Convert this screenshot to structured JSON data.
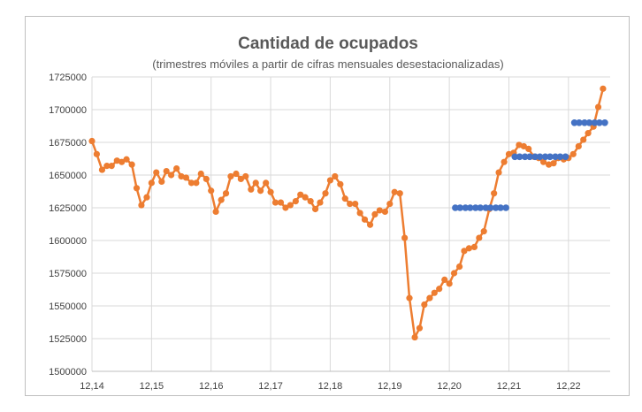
{
  "chart_data": {
    "type": "line",
    "title": "Cantidad de ocupados",
    "subtitle": "(trimestres móviles a partir de cifras mensuales desestacionalizadas)",
    "xlabel": "",
    "ylabel": "",
    "ylim": [
      1500000,
      1725000
    ],
    "y_ticks": [
      "1500000",
      "1525000",
      "1550000",
      "1575000",
      "1600000",
      "1625000",
      "1650000",
      "1675000",
      "1700000",
      "1725000"
    ],
    "y_tick_values": [
      1500000,
      1525000,
      1550000,
      1575000,
      1600000,
      1625000,
      1650000,
      1675000,
      1700000,
      1725000
    ],
    "x_ticks": [
      "12,14",
      "12,15",
      "12,16",
      "12,17",
      "12,18",
      "12,19",
      "12,20",
      "12,21",
      "12,22"
    ],
    "x_tick_values": [
      12.14,
      12.15,
      12.16,
      12.17,
      12.18,
      12.19,
      12.2,
      12.21,
      12.22
    ],
    "xlim": [
      12.14,
      12.227
    ],
    "grid": true,
    "colors": {
      "line": "#ED7D31",
      "steps": "#4472C4",
      "grid": "#d9d9d9",
      "axis": "#bfbfbf"
    },
    "series": [
      {
        "style": "line-markers",
        "x": [
          12.14,
          12.1408,
          12.1417,
          12.1425,
          12.1433,
          12.1442,
          12.145,
          12.1458,
          12.1467,
          12.1475,
          12.1483,
          12.1492,
          12.15,
          12.1508,
          12.1517,
          12.1525,
          12.1533,
          12.1542,
          12.155,
          12.1558,
          12.1567,
          12.1575,
          12.1583,
          12.1592,
          12.16,
          12.1608,
          12.1617,
          12.1625,
          12.1633,
          12.1642,
          12.165,
          12.1658,
          12.1667,
          12.1675,
          12.1683,
          12.1692,
          12.17,
          12.1708,
          12.1717,
          12.1725,
          12.1733,
          12.1742,
          12.175,
          12.1758,
          12.1767,
          12.1775,
          12.1783,
          12.1792,
          12.18,
          12.1808,
          12.1817,
          12.1825,
          12.1833,
          12.1842,
          12.185,
          12.1858,
          12.1867,
          12.1875,
          12.1883,
          12.1892,
          12.19,
          12.1908,
          12.1917,
          12.1925,
          12.1933,
          12.1942,
          12.195,
          12.1958,
          12.1967,
          12.1975,
          12.1983,
          12.1992,
          12.2,
          12.2008,
          12.2017,
          12.2025,
          12.2033,
          12.2042,
          12.205,
          12.2058,
          12.2067,
          12.2075,
          12.2083,
          12.2092,
          12.21,
          12.2108,
          12.2117,
          12.2125,
          12.2133,
          12.2142,
          12.215,
          12.2158,
          12.2167,
          12.2175,
          12.2183,
          12.2192,
          12.22,
          12.2208,
          12.2217,
          12.2225,
          12.2233,
          12.2242,
          12.225,
          12.2258
        ],
        "values": [
          1676000,
          1666000,
          1654000,
          1657000,
          1657000,
          1661000,
          1660000,
          1662000,
          1658000,
          1640000,
          1627000,
          1633000,
          1644000,
          1652000,
          1645000,
          1653000,
          1650000,
          1655000,
          1649000,
          1648000,
          1644000,
          1644000,
          1651000,
          1647000,
          1638000,
          1622000,
          1631000,
          1636000,
          1649000,
          1651000,
          1647000,
          1649000,
          1639000,
          1644000,
          1638000,
          1644000,
          1637000,
          1629000,
          1629000,
          1625000,
          1627000,
          1630000,
          1635000,
          1633000,
          1630000,
          1624000,
          1629000,
          1636000,
          1646000,
          1649000,
          1643000,
          1632000,
          1628000,
          1628000,
          1621000,
          1616000,
          1612000,
          1620000,
          1623000,
          1622000,
          1628000,
          1637000,
          1636000,
          1602000,
          1556000,
          1526000,
          1533000,
          1551000,
          1556000,
          1560000,
          1563000,
          1570000,
          1567000,
          1575000,
          1580000,
          1592000,
          1594000,
          1595000,
          1602000,
          1607000,
          1624000,
          1636000,
          1652000,
          1660000,
          1666000,
          1667000,
          1673000,
          1672000,
          1670000,
          1664000,
          1663000,
          1660000,
          1658000,
          1659000,
          1663000,
          1662000,
          1663000,
          1666000,
          1672000,
          1677000,
          1682000,
          1687000,
          1702000,
          1716000
        ]
      },
      {
        "style": "markers",
        "x": [
          12.201,
          12.2018,
          12.2027,
          12.2035,
          12.2044,
          12.2052,
          12.2061,
          12.2069,
          12.2078,
          12.2086,
          12.2095,
          12.211,
          12.2118,
          12.2127,
          12.2135,
          12.2144,
          12.2152,
          12.2161,
          12.2169,
          12.2178,
          12.2186,
          12.2195,
          12.221,
          12.2218,
          12.2227,
          12.2235,
          12.2244,
          12.2252,
          12.2261
        ],
        "values": [
          1625000,
          1625000,
          1625000,
          1625000,
          1625000,
          1625000,
          1625000,
          1625000,
          1625000,
          1625000,
          1625000,
          1664000,
          1664000,
          1664000,
          1664000,
          1664000,
          1664000,
          1664000,
          1664000,
          1664000,
          1664000,
          1664000,
          1690000,
          1690000,
          1690000,
          1690000,
          1690000,
          1690000,
          1690000
        ]
      }
    ]
  }
}
